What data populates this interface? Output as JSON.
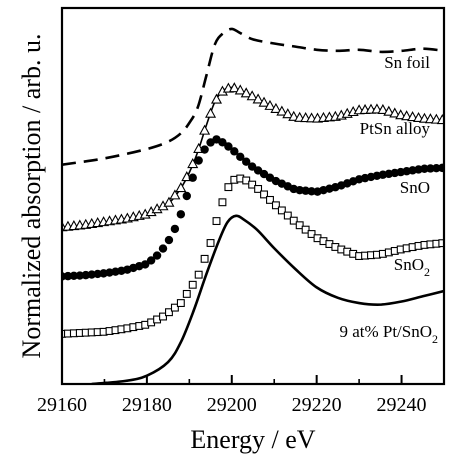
{
  "chart_data": {
    "type": "line",
    "xlabel": "Energy / eV",
    "ylabel": "Normalized absorption / arb. u.",
    "xlim": [
      29160,
      29250
    ],
    "ylim": [
      0,
      7.2
    ],
    "xticks": [
      29160,
      29180,
      29200,
      29220,
      29240
    ],
    "xtick_labels": [
      "29160",
      "29180",
      "29200",
      "29220",
      "29240"
    ],
    "yticks_labeled": false,
    "grid": false,
    "legend": "none",
    "series": [
      {
        "name": "Sn foil",
        "label_text": "Sn foil",
        "style": "dashed",
        "color": "#000000",
        "x": [
          29160,
          29170,
          29180,
          29185,
          29188,
          29190,
          29192,
          29194,
          29196,
          29198,
          29200,
          29202,
          29205,
          29210,
          29215,
          29220,
          29225,
          29230,
          29235,
          29240,
          29245,
          29250
        ],
        "y": [
          4.2,
          4.32,
          4.5,
          4.64,
          4.8,
          5.0,
          5.3,
          5.9,
          6.5,
          6.72,
          6.8,
          6.72,
          6.6,
          6.52,
          6.46,
          6.4,
          6.38,
          6.4,
          6.36,
          6.38,
          6.42,
          6.38
        ]
      },
      {
        "name": "PtSn alloy",
        "label_text": "PtSn alloy",
        "style": "line+triangle",
        "color": "#000000",
        "x": [
          29160,
          29165,
          29170,
          29175,
          29180,
          29185,
          29188,
          29190,
          29192,
          29194,
          29196,
          29198,
          29200,
          29202,
          29205,
          29210,
          29215,
          29220,
          29225,
          29230,
          29235,
          29240,
          29245,
          29250
        ],
        "y": [
          3.0,
          3.04,
          3.1,
          3.16,
          3.25,
          3.45,
          3.75,
          4.05,
          4.45,
          4.95,
          5.4,
          5.62,
          5.68,
          5.62,
          5.5,
          5.28,
          5.1,
          5.08,
          5.12,
          5.24,
          5.26,
          5.14,
          5.08,
          5.05
        ]
      },
      {
        "name": "SnO",
        "label_text": "SnO",
        "style": "filled-circle",
        "color": "#000000",
        "x": [
          29160,
          29165,
          29170,
          29175,
          29180,
          29183,
          29186,
          29188,
          29190,
          29192,
          29194,
          29196,
          29198,
          29200,
          29202,
          29205,
          29210,
          29215,
          29220,
          29225,
          29230,
          29235,
          29240,
          29245,
          29250
        ],
        "y": [
          2.06,
          2.08,
          2.12,
          2.18,
          2.3,
          2.5,
          2.85,
          3.25,
          3.75,
          4.25,
          4.55,
          4.7,
          4.62,
          4.5,
          4.35,
          4.15,
          3.9,
          3.72,
          3.68,
          3.78,
          3.92,
          4.0,
          4.06,
          4.12,
          4.14
        ]
      },
      {
        "name": "SnO2",
        "label_text": "SnO",
        "label_subscript": "2",
        "style": "open-square",
        "color": "#000000",
        "x": [
          29160,
          29165,
          29170,
          29175,
          29180,
          29184,
          29188,
          29192,
          29195,
          29197,
          29199,
          29201,
          29203,
          29206,
          29210,
          29215,
          29220,
          29225,
          29230,
          29235,
          29240,
          29245,
          29250
        ],
        "y": [
          0.96,
          0.98,
          1.0,
          1.06,
          1.14,
          1.3,
          1.55,
          2.05,
          2.7,
          3.3,
          3.75,
          3.95,
          3.92,
          3.75,
          3.45,
          3.1,
          2.8,
          2.6,
          2.45,
          2.48,
          2.58,
          2.66,
          2.7
        ]
      },
      {
        "name": "9 at% Pt/SnO2",
        "label_text": "9 at% Pt/SnO",
        "label_subscript": "2",
        "style": "solid",
        "color": "#000000",
        "x": [
          29167,
          29175,
          29180,
          29185,
          29188,
          29191,
          29194,
          29197,
          29199,
          29201,
          29203,
          29206,
          29210,
          29215,
          29220,
          29225,
          29230,
          29235,
          29240,
          29245,
          29250
        ],
        "y": [
          0.0,
          0.06,
          0.16,
          0.42,
          0.8,
          1.4,
          2.1,
          2.75,
          3.1,
          3.22,
          3.14,
          2.95,
          2.6,
          2.2,
          1.85,
          1.65,
          1.55,
          1.52,
          1.58,
          1.68,
          1.78
        ]
      }
    ]
  }
}
